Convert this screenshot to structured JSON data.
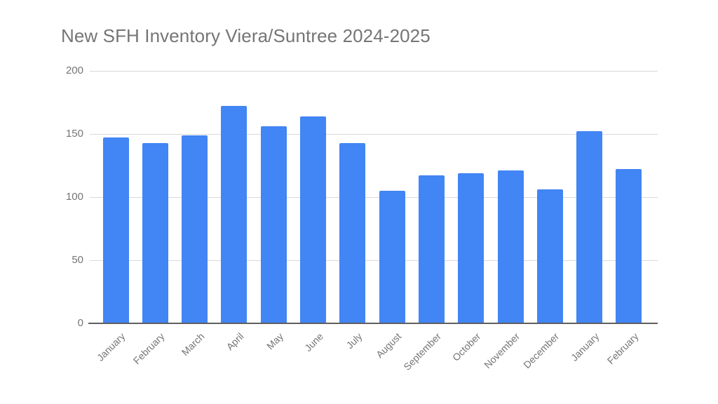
{
  "title": "New SFH Inventory Viera/Suntree 2024-2025",
  "colors": {
    "bar": "#4285f4",
    "title": "#757575",
    "grid": "#d9d9d9",
    "axis": "#5f5f5f"
  },
  "yaxis": {
    "ticks": [
      "0",
      "50",
      "100",
      "150",
      "200"
    ]
  },
  "chart_data": {
    "type": "bar",
    "title": "New SFH Inventory Viera/Suntree 2024-2025",
    "xlabel": "",
    "ylabel": "",
    "ylim": [
      0,
      200
    ],
    "yticks": [
      0,
      50,
      100,
      150,
      200
    ],
    "grid": true,
    "legend": "none",
    "categories": [
      "January",
      "February",
      "March",
      "April",
      "May",
      "June",
      "July",
      "August",
      "September",
      "October",
      "November",
      "December",
      "January",
      "February"
    ],
    "values": [
      147,
      143,
      149,
      172,
      156,
      164,
      143,
      105,
      117,
      119,
      121,
      106,
      152,
      122
    ]
  }
}
